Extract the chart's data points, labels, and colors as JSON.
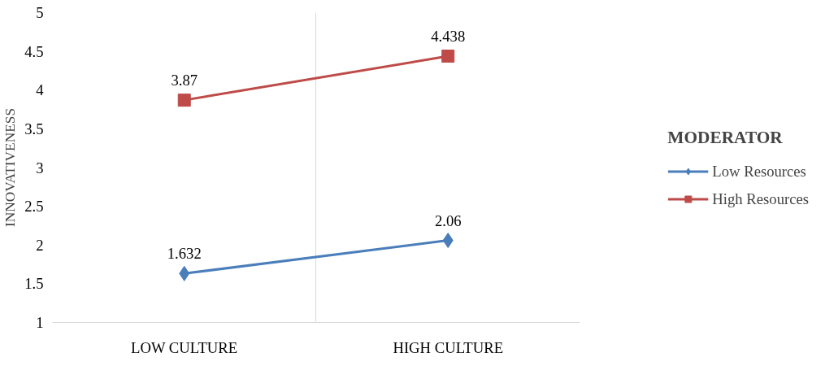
{
  "chart_data": {
    "type": "line",
    "ylabel": "INNOVATIVENESS",
    "legend_title": "MODERATOR",
    "categories": [
      "LOW CULTURE",
      "HIGH CULTURE"
    ],
    "series": [
      {
        "name": "Low Resources",
        "color": "#4a7ebb",
        "values": [
          1.632,
          2.06
        ],
        "marker": "diamond"
      },
      {
        "name": "High Resources",
        "color": "#be4b48",
        "values": [
          3.87,
          4.438
        ],
        "marker": "square"
      }
    ],
    "ylim": [
      1,
      5
    ],
    "yticks": [
      1,
      1.5,
      2,
      2.5,
      3,
      3.5,
      4,
      4.5,
      5
    ],
    "grid": "x",
    "legend": "right",
    "data_labels": true
  }
}
